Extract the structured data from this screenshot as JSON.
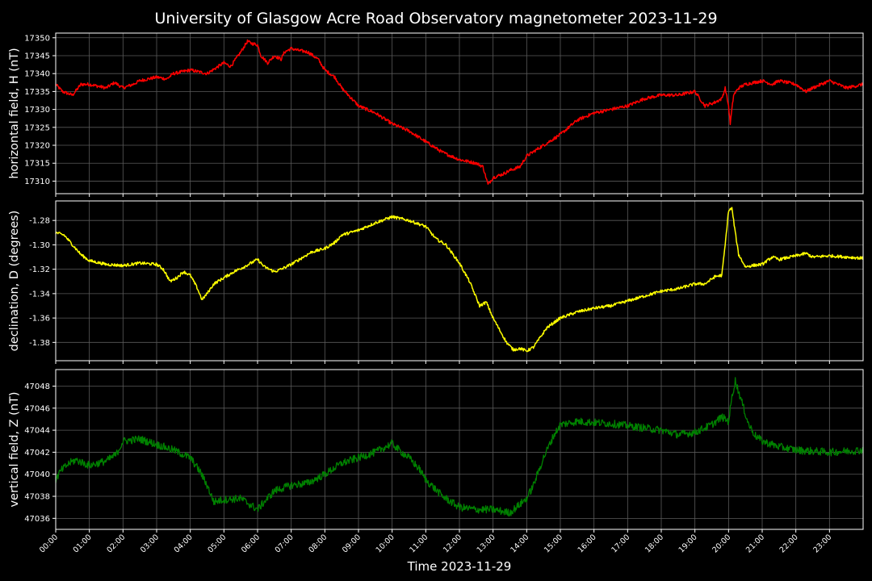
{
  "title": "University of Glasgow Acre Road Observatory magnetometer 2023-11-29",
  "x_label": "Time 2023-11-29",
  "time_ticks": [
    "00:00",
    "01:00",
    "02:00",
    "03:00",
    "04:00",
    "05:00",
    "06:00",
    "07:00",
    "08:00",
    "09:00",
    "10:00",
    "11:00",
    "12:00",
    "13:00",
    "14:00",
    "15:00",
    "16:00",
    "17:00",
    "18:00",
    "19:00",
    "20:00",
    "21:00",
    "22:00",
    "23:00"
  ],
  "chart_data": [
    {
      "type": "line",
      "ylabel": "horizontal field, H (nT)",
      "color": "#ff0000",
      "x_unit": "hours since 00:00",
      "xlim": [
        0,
        24
      ],
      "ylim": [
        17306.5,
        17351.3
      ],
      "yticks": [
        17310,
        17315,
        17320,
        17325,
        17330,
        17335,
        17340,
        17345,
        17350
      ],
      "tick_decimals": 0,
      "noise": 0.45,
      "series": [
        {
          "x": [
            0,
            0.2,
            0.5,
            0.75,
            1,
            1.5,
            1.75,
            2,
            2.3,
            2.5,
            3,
            3.3,
            3.5,
            4,
            4.5,
            4.75,
            5,
            5.2,
            5.5,
            5.7,
            5.8,
            6,
            6.1,
            6.3,
            6.5,
            6.7,
            6.8,
            7,
            7.2,
            7.5,
            7.8,
            8,
            8.3,
            8.5,
            9,
            9.5,
            10,
            10.5,
            11,
            11.5,
            12,
            12.5,
            12.7,
            12.85,
            13,
            13.3,
            13.5,
            13.8,
            14,
            14.5,
            15,
            15.5,
            16,
            16.5,
            17,
            17.5,
            18,
            18.5,
            19,
            19.3,
            19.6,
            19.8,
            19.9,
            20,
            20.05,
            20.15,
            20.3,
            20.5,
            21,
            21.3,
            21.5,
            22,
            22.3,
            22.5,
            23,
            23.5,
            24
          ],
          "y": [
            17337,
            17335,
            17334,
            17337,
            17337,
            17336,
            17337.5,
            17336,
            17337,
            17338,
            17339,
            17338.5,
            17340,
            17341,
            17340,
            17341.5,
            17343,
            17342,
            17346,
            17349,
            17348.5,
            17348,
            17345,
            17343,
            17345,
            17344,
            17346,
            17347,
            17346.5,
            17346,
            17344,
            17341,
            17339,
            17336,
            17331,
            17329,
            17326,
            17324,
            17321,
            17318,
            17316,
            17315,
            17314,
            17309,
            17311,
            17312,
            17313,
            17314,
            17317,
            17320,
            17323,
            17327,
            17329,
            17330,
            17331,
            17333,
            17334,
            17334,
            17335,
            17331,
            17332,
            17333,
            17336,
            17331,
            17326,
            17334,
            17336,
            17337,
            17338,
            17337,
            17338,
            17337,
            17335,
            17336,
            17338,
            17336,
            17337
          ]
        }
      ]
    },
    {
      "type": "line",
      "ylabel": "declination, D (degrees)",
      "color": "#ffff00",
      "x_unit": "hours since 00:00",
      "xlim": [
        0,
        24
      ],
      "ylim": [
        -1.395,
        -1.264
      ],
      "yticks": [
        -1.38,
        -1.36,
        -1.34,
        -1.32,
        -1.3,
        -1.28
      ],
      "tick_decimals": 2,
      "noise": 0.0012,
      "series": [
        {
          "x": [
            0,
            0.25,
            0.5,
            0.75,
            1,
            1.5,
            2,
            2.5,
            3,
            3.2,
            3.4,
            3.6,
            3.8,
            4,
            4.2,
            4.35,
            4.5,
            4.7,
            5,
            5.3,
            5.6,
            5.8,
            6,
            6.2,
            6.5,
            6.7,
            7,
            7.3,
            7.6,
            8,
            8.3,
            8.5,
            9,
            9.5,
            10,
            10.5,
            11,
            11.3,
            11.6,
            12,
            12.3,
            12.6,
            12.8,
            13,
            13.2,
            13.4,
            13.6,
            13.8,
            14,
            14.2,
            14.4,
            14.6,
            15,
            15.5,
            16,
            16.5,
            17,
            17.5,
            18,
            18.5,
            19,
            19.3,
            19.6,
            19.8,
            19.9,
            20,
            20.1,
            20.2,
            20.3,
            20.5,
            20.7,
            21,
            21.3,
            21.5,
            22,
            22.3,
            22.5,
            23,
            23.5,
            24
          ],
          "y": [
            -1.29,
            -1.292,
            -1.3,
            -1.308,
            -1.313,
            -1.316,
            -1.317,
            -1.315,
            -1.316,
            -1.32,
            -1.33,
            -1.327,
            -1.322,
            -1.325,
            -1.335,
            -1.345,
            -1.34,
            -1.332,
            -1.327,
            -1.322,
            -1.318,
            -1.315,
            -1.312,
            -1.318,
            -1.322,
            -1.32,
            -1.316,
            -1.311,
            -1.306,
            -1.303,
            -1.298,
            -1.292,
            -1.288,
            -1.282,
            -1.277,
            -1.28,
            -1.285,
            -1.295,
            -1.3,
            -1.315,
            -1.33,
            -1.35,
            -1.347,
            -1.36,
            -1.37,
            -1.38,
            -1.386,
            -1.385,
            -1.387,
            -1.384,
            -1.376,
            -1.368,
            -1.36,
            -1.355,
            -1.352,
            -1.35,
            -1.346,
            -1.342,
            -1.338,
            -1.336,
            -1.332,
            -1.332,
            -1.326,
            -1.325,
            -1.3,
            -1.272,
            -1.27,
            -1.29,
            -1.308,
            -1.318,
            -1.317,
            -1.316,
            -1.31,
            -1.312,
            -1.309,
            -1.307,
            -1.31,
            -1.309,
            -1.31,
            -1.311
          ]
        }
      ]
    },
    {
      "type": "line",
      "ylabel": "vertical field, Z (nT)",
      "color": "#008000",
      "x_unit": "hours since 00:00",
      "xlim": [
        0,
        24
      ],
      "ylim": [
        47035.0,
        47049.5
      ],
      "yticks": [
        47036,
        47038,
        47040,
        47042,
        47044,
        47046,
        47048
      ],
      "tick_decimals": 0,
      "noise": 0.35,
      "series": [
        {
          "x": [
            0,
            0.15,
            0.4,
            0.6,
            1,
            1.5,
            1.8,
            2,
            2.5,
            3,
            3.5,
            4,
            4.3,
            4.5,
            4.7,
            5,
            5.5,
            6,
            6.2,
            6.5,
            7,
            7.5,
            8,
            8.5,
            9,
            9.5,
            10,
            10.2,
            10.5,
            10.8,
            11,
            11.5,
            12,
            12.5,
            13,
            13.5,
            14,
            14.2,
            14.5,
            14.8,
            15,
            15.5,
            16,
            16.5,
            17,
            17.5,
            18,
            18.5,
            19,
            19.5,
            19.8,
            20,
            20.1,
            20.2,
            20.4,
            20.6,
            20.8,
            21,
            21.5,
            22,
            22.5,
            23,
            23.5,
            24
          ],
          "y": [
            47039.5,
            47040.3,
            47041,
            47041.3,
            47040.8,
            47041.2,
            47041.8,
            47043,
            47043.2,
            47042.7,
            47042.2,
            47041.5,
            47040.2,
            47039,
            47037.5,
            47037.7,
            47037.8,
            47036.8,
            47037.5,
            47038.5,
            47039,
            47039.2,
            47040,
            47041,
            47041.5,
            47042,
            47042.8,
            47042.2,
            47041.5,
            47040.5,
            47039.5,
            47038,
            47037,
            47036.8,
            47036.8,
            47036.5,
            47037.8,
            47039,
            47041.5,
            47043.5,
            47044.5,
            47044.8,
            47044.7,
            47044.6,
            47044.4,
            47044.2,
            47044,
            47043.6,
            47043.8,
            47044.5,
            47045.2,
            47044.8,
            47047,
            47048.5,
            47046.5,
            47044.5,
            47043.5,
            47043,
            47042.5,
            47042.2,
            47042.1,
            47042,
            47042.1,
            47042.2
          ]
        }
      ]
    }
  ]
}
